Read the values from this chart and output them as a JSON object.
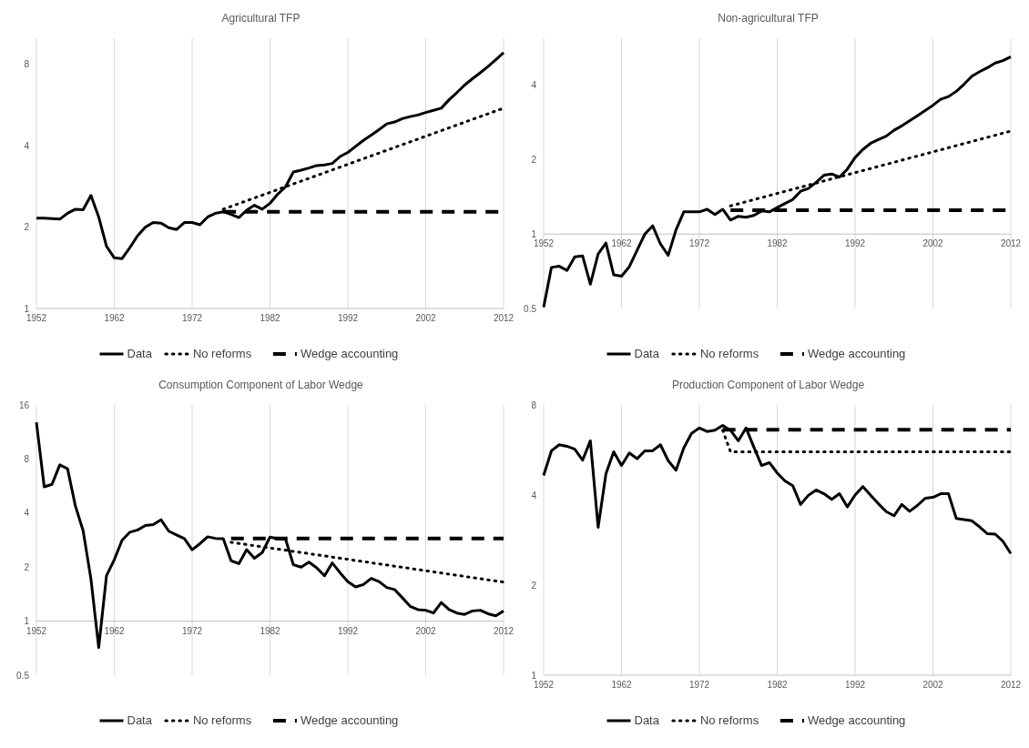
{
  "chart_data": [
    {
      "type": "line",
      "title": "Agricultural TFP",
      "log": "y",
      "grid": "x",
      "legend": "bottom",
      "xlim": [
        1952,
        2012
      ],
      "xticks": [
        1952,
        1962,
        1972,
        1982,
        1992,
        2002,
        2012
      ],
      "ylim": [
        1,
        10
      ],
      "yticks": [
        1,
        2,
        4,
        8
      ],
      "x": [
        1952,
        1953,
        1954,
        1955,
        1956,
        1957,
        1958,
        1959,
        1960,
        1961,
        1962,
        1963,
        1964,
        1965,
        1966,
        1967,
        1968,
        1969,
        1970,
        1971,
        1972,
        1973,
        1974,
        1975,
        1976,
        1977,
        1978,
        1979,
        1980,
        1981,
        1982,
        1983,
        1984,
        1985,
        1986,
        1987,
        1988,
        1989,
        1990,
        1991,
        1992,
        1993,
        1994,
        1995,
        1996,
        1997,
        1998,
        1999,
        2000,
        2001,
        2002,
        2003,
        2004,
        2005,
        2006,
        2007,
        2008,
        2009,
        2010,
        2011,
        2012
      ],
      "series": [
        {
          "name": "Data",
          "color": "#000000",
          "line_style": "solid",
          "values": [
            2.16,
            2.16,
            2.15,
            2.14,
            2.25,
            2.33,
            2.32,
            2.62,
            2.18,
            1.7,
            1.54,
            1.53,
            1.68,
            1.86,
            2.0,
            2.08,
            2.07,
            1.99,
            1.96,
            2.08,
            2.08,
            2.04,
            2.18,
            2.25,
            2.28,
            2.23,
            2.17,
            2.31,
            2.41,
            2.33,
            2.45,
            2.65,
            2.82,
            3.2,
            3.25,
            3.31,
            3.38,
            3.4,
            3.44,
            3.65,
            3.78,
            3.98,
            4.19,
            4.38,
            4.59,
            4.82,
            4.9,
            5.04,
            5.13,
            5.2,
            5.31,
            5.41,
            5.51,
            5.92,
            6.29,
            6.71,
            7.08,
            7.45,
            7.86,
            8.32,
            8.84
          ]
        },
        {
          "name": "No reforms",
          "color": "#000000",
          "line_style": "dotted",
          "x": [
            1976,
            2012
          ],
          "values": [
            2.33,
            5.51
          ]
        },
        {
          "name": "Wedge accounting",
          "color": "#000000",
          "line_style": "dashed",
          "x": [
            1976,
            2012
          ],
          "values": [
            2.28,
            2.28
          ]
        }
      ]
    },
    {
      "type": "line",
      "title": "Non-agricultural TFP",
      "log": "y",
      "grid": "x",
      "legend": "bottom",
      "xlim": [
        1952,
        2012
      ],
      "xticks": [
        1952,
        1962,
        1972,
        1982,
        1992,
        2002,
        2012
      ],
      "ylim": [
        0.5,
        6.2
      ],
      "yticks": [
        0.5,
        1,
        2,
        4
      ],
      "x": [
        1952,
        1953,
        1954,
        1955,
        1956,
        1957,
        1958,
        1959,
        1960,
        1961,
        1962,
        1963,
        1964,
        1965,
        1966,
        1967,
        1968,
        1969,
        1970,
        1971,
        1972,
        1973,
        1974,
        1975,
        1976,
        1977,
        1978,
        1979,
        1980,
        1981,
        1982,
        1983,
        1984,
        1985,
        1986,
        1987,
        1988,
        1989,
        1990,
        1991,
        1992,
        1993,
        1994,
        1995,
        1996,
        1997,
        1998,
        1999,
        2000,
        2001,
        2002,
        2003,
        2004,
        2005,
        2006,
        2007,
        2008,
        2009,
        2010,
        2011,
        2012
      ],
      "series": [
        {
          "name": "Data",
          "color": "#000000",
          "line_style": "solid",
          "values": [
            0.506,
            0.733,
            0.741,
            0.713,
            0.809,
            0.816,
            0.627,
            0.831,
            0.92,
            0.684,
            0.676,
            0.737,
            0.86,
            1.0,
            1.08,
            0.913,
            0.82,
            1.04,
            1.23,
            1.23,
            1.23,
            1.26,
            1.2,
            1.26,
            1.14,
            1.18,
            1.17,
            1.19,
            1.24,
            1.23,
            1.28,
            1.33,
            1.38,
            1.49,
            1.53,
            1.62,
            1.73,
            1.75,
            1.7,
            1.83,
            2.04,
            2.2,
            2.33,
            2.41,
            2.49,
            2.63,
            2.74,
            2.87,
            3.01,
            3.16,
            3.32,
            3.51,
            3.6,
            3.78,
            4.04,
            4.35,
            4.54,
            4.71,
            4.92,
            5.03,
            5.22
          ]
        },
        {
          "name": "No reforms",
          "color": "#000000",
          "line_style": "dotted",
          "x": [
            1976,
            2012
          ],
          "values": [
            1.3,
            2.61
          ]
        },
        {
          "name": "Wedge accounting",
          "color": "#000000",
          "line_style": "dashed",
          "x": [
            1976,
            2012
          ],
          "values": [
            1.25,
            1.25
          ]
        }
      ]
    },
    {
      "type": "line",
      "title": "Consumption Component of Labor Wedge",
      "log": "y",
      "grid": "x",
      "legend": "bottom",
      "xlim": [
        1952,
        2012
      ],
      "xticks": [
        1952,
        1962,
        1972,
        1982,
        1992,
        2002,
        2012
      ],
      "ylim": [
        0.5,
        16
      ],
      "yticks": [
        0.5,
        1,
        2,
        4,
        8,
        16
      ],
      "x": [
        1952,
        1953,
        1954,
        1955,
        1956,
        1957,
        1958,
        1959,
        1960,
        1961,
        1962,
        1963,
        1964,
        1965,
        1966,
        1967,
        1968,
        1969,
        1970,
        1971,
        1972,
        1973,
        1974,
        1975,
        1976,
        1977,
        1978,
        1979,
        1980,
        1981,
        1982,
        1983,
        1984,
        1985,
        1986,
        1987,
        1988,
        1989,
        1990,
        1991,
        1992,
        1993,
        1994,
        1995,
        1996,
        1997,
        1998,
        1999,
        2000,
        2001,
        2002,
        2003,
        2004,
        2005,
        2006,
        2007,
        2008,
        2009,
        2010,
        2011,
        2012
      ],
      "series": [
        {
          "name": "Data",
          "color": "#000000",
          "line_style": "solid",
          "values": [
            12.8,
            5.6,
            5.78,
            7.42,
            7.06,
            4.39,
            3.19,
            1.72,
            0.714,
            1.79,
            2.2,
            2.82,
            3.13,
            3.22,
            3.41,
            3.45,
            3.67,
            3.17,
            3.02,
            2.88,
            2.5,
            2.7,
            2.95,
            2.89,
            2.88,
            2.17,
            2.09,
            2.5,
            2.24,
            2.41,
            2.94,
            2.88,
            2.86,
            2.06,
            2.0,
            2.13,
            1.98,
            1.79,
            2.11,
            1.86,
            1.66,
            1.55,
            1.6,
            1.73,
            1.66,
            1.54,
            1.5,
            1.35,
            1.21,
            1.16,
            1.15,
            1.11,
            1.27,
            1.16,
            1.11,
            1.09,
            1.14,
            1.15,
            1.1,
            1.07,
            1.14
          ]
        },
        {
          "name": "No reforms",
          "color": "#000000",
          "line_style": "dotted",
          "x": [
            1977,
            2012
          ],
          "values": [
            2.75,
            1.65
          ]
        },
        {
          "name": "Wedge accounting",
          "color": "#000000",
          "line_style": "dashed",
          "x": [
            1977,
            2012
          ],
          "values": [
            2.89,
            2.89
          ]
        }
      ]
    },
    {
      "type": "line",
      "title": "Production Component of Labor Wedge",
      "log": "y",
      "grid": "x",
      "legend": "bottom",
      "xlim": [
        1952,
        2012
      ],
      "xticks": [
        1952,
        1962,
        1972,
        1982,
        1992,
        2002,
        2012
      ],
      "ylim": [
        1,
        8
      ],
      "yticks": [
        1,
        2,
        4,
        8
      ],
      "x": [
        1952,
        1953,
        1954,
        1955,
        1956,
        1957,
        1958,
        1959,
        1960,
        1961,
        1962,
        1963,
        1964,
        1965,
        1966,
        1967,
        1968,
        1969,
        1970,
        1971,
        1972,
        1973,
        1974,
        1975,
        1976,
        1977,
        1978,
        1979,
        1980,
        1981,
        1982,
        1983,
        1984,
        1985,
        1986,
        1987,
        1988,
        1989,
        1990,
        1991,
        1992,
        1993,
        1994,
        1995,
        1996,
        1997,
        1998,
        1999,
        2000,
        2001,
        2002,
        2003,
        2004,
        2005,
        2006,
        2007,
        2008,
        2009,
        2010,
        2011,
        2012
      ],
      "series": [
        {
          "name": "Data",
          "color": "#000000",
          "line_style": "solid",
          "values": [
            4.65,
            5.62,
            5.89,
            5.82,
            5.69,
            5.23,
            6.07,
            3.12,
            4.71,
            5.58,
            5.02,
            5.53,
            5.29,
            5.62,
            5.62,
            5.89,
            5.21,
            4.84,
            5.75,
            6.43,
            6.7,
            6.52,
            6.59,
            6.83,
            6.58,
            6.07,
            6.7,
            5.78,
            5.02,
            5.13,
            4.74,
            4.46,
            4.3,
            3.72,
            3.99,
            4.16,
            4.04,
            3.87,
            4.04,
            3.65,
            4.0,
            4.27,
            3.99,
            3.74,
            3.52,
            3.41,
            3.72,
            3.53,
            3.69,
            3.9,
            3.93,
            4.04,
            4.04,
            3.34,
            3.31,
            3.28,
            3.13,
            2.97,
            2.96,
            2.8,
            2.55
          ]
        },
        {
          "name": "No reforms",
          "color": "#000000",
          "line_style": "dotted",
          "x": [
            1975,
            1976,
            2012
          ],
          "values": [
            6.58,
            5.58,
            5.58
          ]
        },
        {
          "name": "Wedge accounting",
          "color": "#000000",
          "line_style": "dashed",
          "x": [
            1975,
            2012
          ],
          "values": [
            6.61,
            6.61
          ]
        }
      ]
    }
  ]
}
